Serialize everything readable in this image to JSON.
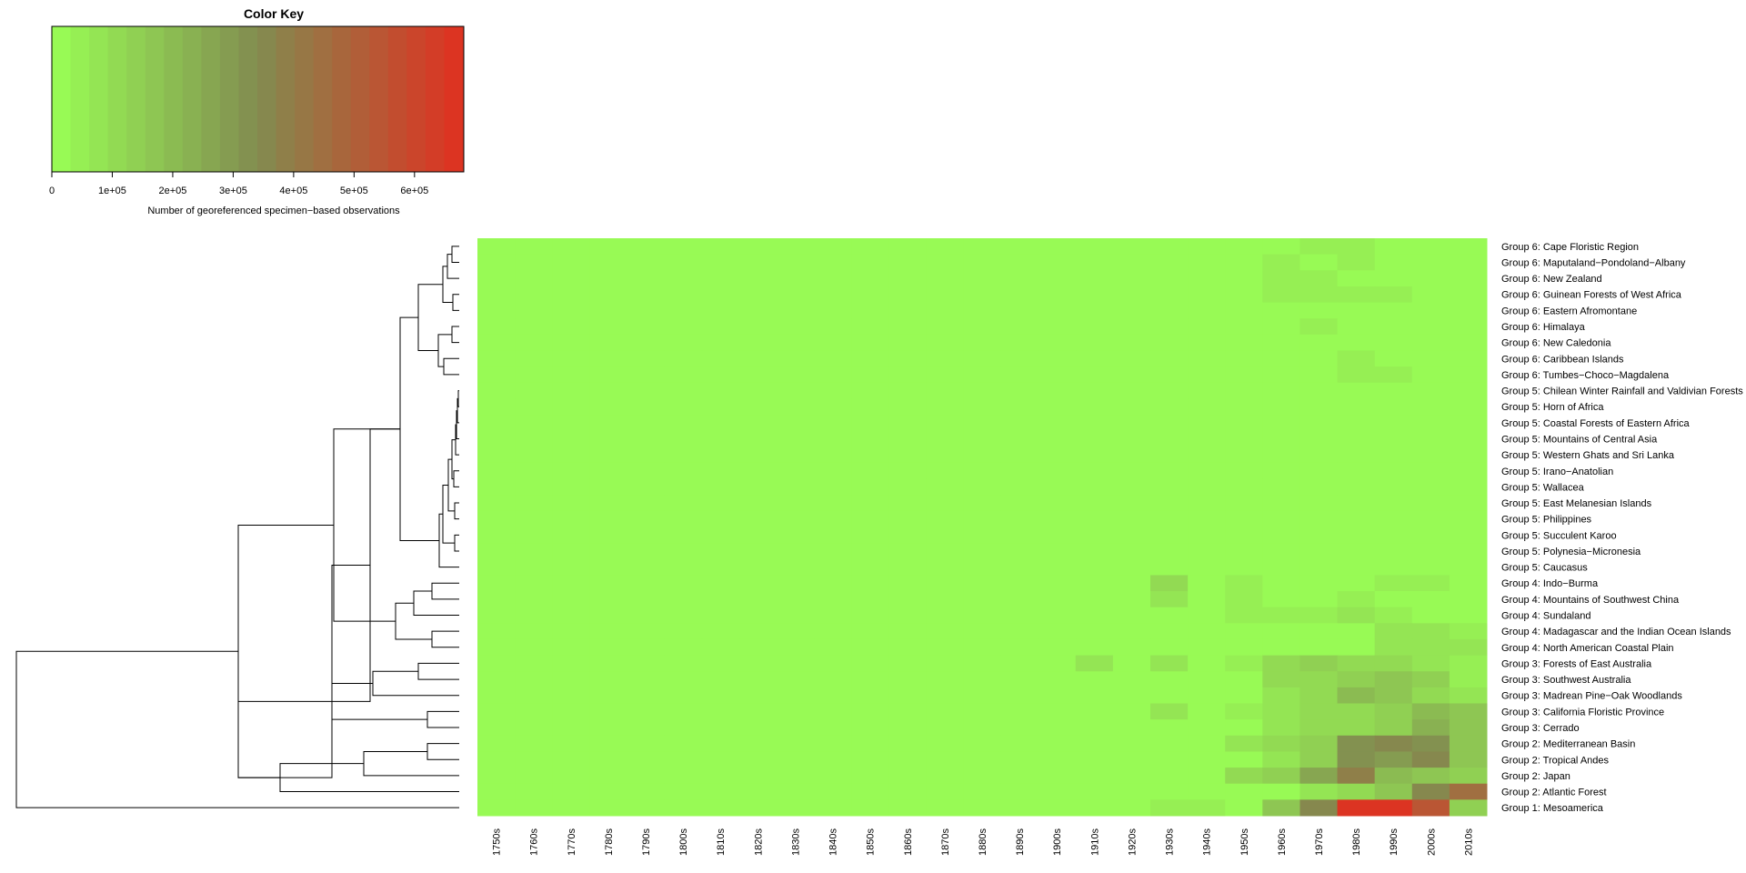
{
  "chart_data": {
    "type": "heatmap",
    "color_key": {
      "title": "Color Key",
      "xlabel": "Number of georeferenced specimen−based observations",
      "ticks": [
        "0",
        "1e+05",
        "2e+05",
        "3e+05",
        "4e+05",
        "5e+05",
        "6e+05"
      ],
      "tick_values": [
        0,
        100000,
        200000,
        300000,
        400000,
        500000,
        600000
      ],
      "range": [
        0,
        680000
      ],
      "low_color": "#99ff55",
      "high_color": "#e03020",
      "bins": 22
    },
    "decades": [
      "1750s",
      "1760s",
      "1770s",
      "1780s",
      "1790s",
      "1800s",
      "1810s",
      "1820s",
      "1830s",
      "1840s",
      "1850s",
      "1860s",
      "1870s",
      "1880s",
      "1890s",
      "1900s",
      "1910s",
      "1920s",
      "1930s",
      "1940s",
      "1950s",
      "1960s",
      "1970s",
      "1980s",
      "1990s",
      "2000s",
      "2010s"
    ],
    "rows": [
      {
        "label": "Group 6: Cape Floristic Region",
        "values": [
          0,
          0,
          0,
          0,
          0,
          0,
          0,
          0,
          0,
          0,
          0,
          0,
          0,
          0,
          0,
          0,
          0,
          0,
          0,
          0,
          0,
          12000,
          60000,
          45000,
          0,
          0,
          0
        ]
      },
      {
        "label": "Group 6: Maputaland−Pondoland−Albany",
        "values": [
          0,
          0,
          0,
          0,
          0,
          0,
          0,
          0,
          0,
          0,
          0,
          0,
          0,
          0,
          0,
          0,
          0,
          0,
          0,
          0,
          0,
          40000,
          15000,
          40000,
          0,
          0,
          0
        ]
      },
      {
        "label": "Group 6: New Zealand",
        "values": [
          0,
          0,
          0,
          0,
          0,
          0,
          0,
          0,
          0,
          0,
          0,
          0,
          0,
          0,
          0,
          0,
          0,
          0,
          0,
          0,
          0,
          45000,
          45000,
          15000,
          0,
          0,
          0
        ]
      },
      {
        "label": "Group 6: Guinean Forests of West Africa",
        "values": [
          0,
          0,
          0,
          0,
          0,
          0,
          0,
          0,
          0,
          0,
          0,
          0,
          0,
          0,
          0,
          0,
          0,
          0,
          0,
          0,
          0,
          45000,
          45000,
          35000,
          35000,
          0,
          0
        ]
      },
      {
        "label": "Group 6: Eastern Afromontane",
        "values": [
          0,
          0,
          0,
          0,
          0,
          0,
          0,
          0,
          0,
          0,
          0,
          0,
          0,
          0,
          0,
          0,
          0,
          0,
          0,
          0,
          0,
          0,
          0,
          0,
          0,
          0,
          0
        ]
      },
      {
        "label": "Group 6: Himalaya",
        "values": [
          0,
          0,
          0,
          0,
          0,
          0,
          0,
          0,
          0,
          0,
          0,
          0,
          0,
          0,
          0,
          0,
          0,
          0,
          0,
          0,
          0,
          0,
          60000,
          0,
          0,
          0,
          0
        ]
      },
      {
        "label": "Group 6: New Caledonia",
        "values": [
          0,
          0,
          0,
          0,
          0,
          0,
          0,
          0,
          0,
          0,
          0,
          0,
          0,
          0,
          0,
          0,
          0,
          0,
          0,
          0,
          0,
          0,
          0,
          0,
          0,
          0,
          0
        ]
      },
      {
        "label": "Group 6: Caribbean Islands",
        "values": [
          0,
          0,
          0,
          0,
          0,
          0,
          0,
          0,
          0,
          0,
          0,
          0,
          0,
          0,
          0,
          0,
          0,
          0,
          0,
          0,
          0,
          0,
          0,
          45000,
          0,
          0,
          0
        ]
      },
      {
        "label": "Group 6: Tumbes−Choco−Magdalena",
        "values": [
          0,
          0,
          0,
          0,
          0,
          0,
          0,
          0,
          0,
          0,
          0,
          0,
          0,
          0,
          0,
          0,
          0,
          0,
          0,
          0,
          0,
          0,
          0,
          45000,
          45000,
          0,
          0
        ]
      },
      {
        "label": "Group 5: Chilean Winter Rainfall and Valdivian Forests",
        "values": [
          0,
          0,
          0,
          0,
          0,
          0,
          0,
          0,
          0,
          0,
          0,
          0,
          0,
          0,
          0,
          0,
          0,
          0,
          0,
          0,
          0,
          0,
          0,
          0,
          0,
          0,
          0
        ]
      },
      {
        "label": "Group 5: Horn of Africa",
        "values": [
          0,
          0,
          0,
          0,
          0,
          0,
          0,
          0,
          0,
          0,
          0,
          0,
          0,
          0,
          0,
          0,
          0,
          0,
          0,
          0,
          0,
          0,
          0,
          0,
          0,
          0,
          0
        ]
      },
      {
        "label": "Group 5: Coastal Forests of Eastern Africa",
        "values": [
          0,
          0,
          0,
          0,
          0,
          0,
          0,
          0,
          0,
          0,
          0,
          0,
          0,
          0,
          0,
          0,
          0,
          0,
          0,
          0,
          0,
          0,
          0,
          0,
          0,
          0,
          0
        ]
      },
      {
        "label": "Group 5: Mountains of Central Asia",
        "values": [
          0,
          0,
          0,
          0,
          0,
          0,
          0,
          0,
          0,
          0,
          0,
          0,
          0,
          0,
          0,
          0,
          0,
          0,
          0,
          0,
          0,
          0,
          0,
          0,
          0,
          0,
          0
        ]
      },
      {
        "label": "Group 5: Western Ghats and Sri Lanka",
        "values": [
          0,
          0,
          0,
          0,
          0,
          0,
          0,
          0,
          0,
          0,
          0,
          0,
          0,
          0,
          0,
          0,
          0,
          0,
          0,
          0,
          0,
          0,
          0,
          0,
          0,
          0,
          0
        ]
      },
      {
        "label": "Group 5: Irano−Anatolian",
        "values": [
          0,
          0,
          0,
          0,
          0,
          0,
          0,
          0,
          0,
          0,
          0,
          0,
          0,
          0,
          0,
          0,
          0,
          0,
          0,
          0,
          0,
          0,
          0,
          0,
          0,
          0,
          0
        ]
      },
      {
        "label": "Group 5: Wallacea",
        "values": [
          0,
          0,
          0,
          0,
          0,
          0,
          0,
          0,
          0,
          0,
          0,
          0,
          0,
          0,
          0,
          0,
          0,
          0,
          0,
          0,
          0,
          0,
          0,
          0,
          0,
          0,
          0
        ]
      },
      {
        "label": "Group 5: East Melanesian Islands",
        "values": [
          0,
          0,
          0,
          0,
          0,
          0,
          0,
          0,
          0,
          0,
          0,
          0,
          0,
          0,
          0,
          0,
          0,
          0,
          0,
          0,
          0,
          0,
          0,
          0,
          0,
          0,
          0
        ]
      },
      {
        "label": "Group 5: Philippines",
        "values": [
          0,
          0,
          0,
          0,
          0,
          0,
          0,
          0,
          0,
          0,
          0,
          0,
          0,
          0,
          0,
          0,
          0,
          0,
          0,
          0,
          0,
          0,
          0,
          0,
          0,
          0,
          0
        ]
      },
      {
        "label": "Group 5: Succulent Karoo",
        "values": [
          0,
          0,
          0,
          0,
          0,
          0,
          0,
          0,
          0,
          0,
          0,
          0,
          0,
          0,
          0,
          0,
          0,
          0,
          0,
          0,
          0,
          0,
          0,
          0,
          0,
          0,
          0
        ]
      },
      {
        "label": "Group 5: Polynesia−Micronesia",
        "values": [
          0,
          0,
          0,
          0,
          0,
          0,
          0,
          0,
          0,
          0,
          0,
          0,
          0,
          0,
          0,
          0,
          0,
          0,
          0,
          0,
          0,
          0,
          0,
          0,
          0,
          0,
          0
        ]
      },
      {
        "label": "Group 5: Caucasus",
        "values": [
          0,
          0,
          0,
          0,
          0,
          0,
          0,
          0,
          0,
          0,
          0,
          0,
          0,
          0,
          0,
          0,
          0,
          0,
          0,
          0,
          0,
          0,
          0,
          0,
          0,
          0,
          0
        ]
      },
      {
        "label": "Group 4: Indo−Burma",
        "values": [
          0,
          0,
          0,
          0,
          0,
          0,
          0,
          0,
          0,
          0,
          0,
          0,
          0,
          0,
          0,
          0,
          0,
          0,
          100000,
          15000,
          45000,
          15000,
          15000,
          15000,
          45000,
          45000,
          0
        ]
      },
      {
        "label": "Group 4: Mountains of Southwest China",
        "values": [
          0,
          0,
          0,
          0,
          0,
          0,
          0,
          0,
          0,
          0,
          0,
          0,
          0,
          0,
          0,
          0,
          0,
          0,
          75000,
          0,
          45000,
          15000,
          15000,
          45000,
          0,
          0,
          0
        ]
      },
      {
        "label": "Group 4: Sundaland",
        "values": [
          0,
          0,
          0,
          0,
          0,
          0,
          0,
          0,
          0,
          0,
          0,
          0,
          0,
          0,
          0,
          0,
          0,
          0,
          0,
          0,
          45000,
          45000,
          45000,
          75000,
          45000,
          0,
          0
        ]
      },
      {
        "label": "Group 4: Madagascar and the Indian Ocean Islands",
        "values": [
          0,
          0,
          0,
          0,
          0,
          0,
          0,
          0,
          0,
          0,
          0,
          0,
          0,
          0,
          0,
          0,
          0,
          0,
          0,
          0,
          0,
          0,
          0,
          0,
          75000,
          75000,
          45000
        ]
      },
      {
        "label": "Group 4: North American Coastal Plain",
        "values": [
          0,
          0,
          0,
          0,
          0,
          0,
          0,
          0,
          0,
          0,
          0,
          0,
          0,
          0,
          0,
          0,
          0,
          0,
          0,
          0,
          0,
          0,
          0,
          15000,
          75000,
          75000,
          75000
        ]
      },
      {
        "label": "Group 3: Forests of East Australia",
        "values": [
          0,
          0,
          0,
          0,
          0,
          0,
          0,
          0,
          0,
          0,
          0,
          0,
          0,
          0,
          0,
          0,
          75000,
          0,
          75000,
          15000,
          45000,
          110000,
          140000,
          110000,
          110000,
          75000,
          45000
        ]
      },
      {
        "label": "Group 3: Southwest Australia",
        "values": [
          0,
          0,
          0,
          0,
          0,
          0,
          0,
          0,
          0,
          0,
          0,
          0,
          0,
          0,
          0,
          0,
          0,
          0,
          0,
          0,
          15000,
          110000,
          110000,
          140000,
          170000,
          140000,
          45000
        ]
      },
      {
        "label": "Group 3: Madrean Pine−Oak Woodlands",
        "values": [
          0,
          0,
          0,
          0,
          0,
          0,
          0,
          0,
          0,
          0,
          0,
          0,
          0,
          0,
          0,
          0,
          0,
          0,
          15000,
          0,
          15000,
          75000,
          110000,
          200000,
          170000,
          110000,
          75000
        ]
      },
      {
        "label": "Group 3: California Floristic Province",
        "values": [
          0,
          0,
          0,
          0,
          0,
          0,
          0,
          0,
          0,
          0,
          0,
          0,
          0,
          0,
          0,
          0,
          0,
          0,
          75000,
          0,
          45000,
          75000,
          110000,
          110000,
          140000,
          200000,
          170000
        ]
      },
      {
        "label": "Group 3: Cerrado",
        "values": [
          0,
          0,
          0,
          0,
          0,
          0,
          0,
          0,
          0,
          0,
          0,
          0,
          0,
          0,
          0,
          0,
          0,
          0,
          0,
          0,
          15000,
          75000,
          110000,
          110000,
          140000,
          230000,
          170000
        ]
      },
      {
        "label": "Group 2: Mediterranean Basin",
        "values": [
          0,
          0,
          0,
          0,
          0,
          0,
          0,
          0,
          0,
          0,
          0,
          0,
          0,
          0,
          0,
          0,
          0,
          0,
          0,
          0,
          75000,
          110000,
          140000,
          310000,
          340000,
          310000,
          170000
        ]
      },
      {
        "label": "Group 2: Tropical Andes",
        "values": [
          0,
          0,
          0,
          0,
          0,
          0,
          0,
          0,
          0,
          0,
          0,
          0,
          0,
          0,
          0,
          0,
          0,
          0,
          0,
          0,
          15000,
          75000,
          140000,
          310000,
          280000,
          340000,
          170000
        ]
      },
      {
        "label": "Group 2: Japan",
        "values": [
          0,
          0,
          0,
          0,
          0,
          0,
          0,
          0,
          0,
          0,
          0,
          0,
          0,
          0,
          0,
          0,
          0,
          0,
          0,
          0,
          110000,
          140000,
          250000,
          400000,
          200000,
          170000,
          140000
        ]
      },
      {
        "label": "Group 2: Atlantic Forest",
        "values": [
          0,
          0,
          0,
          0,
          0,
          0,
          0,
          0,
          0,
          0,
          0,
          0,
          0,
          0,
          0,
          0,
          0,
          0,
          0,
          0,
          0,
          0,
          75000,
          110000,
          170000,
          350000,
          440000
        ]
      },
      {
        "label": "Group 1: Mesoamerica",
        "values": [
          0,
          0,
          0,
          0,
          0,
          0,
          0,
          0,
          0,
          0,
          0,
          0,
          0,
          0,
          0,
          0,
          0,
          0,
          45000,
          45000,
          15000,
          170000,
          370000,
          680000,
          650000,
          530000,
          140000
        ]
      }
    ]
  }
}
